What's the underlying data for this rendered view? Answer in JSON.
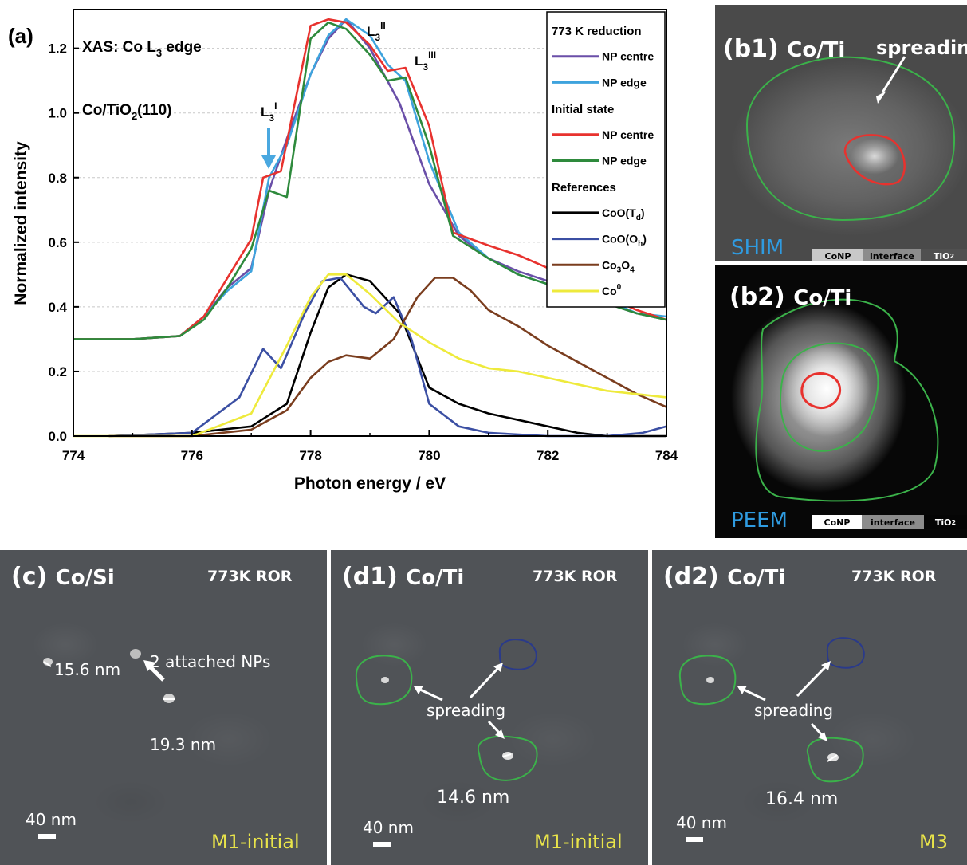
{
  "panel_a": {
    "label": "(a)",
    "note_1": "XAS: Co L",
    "note_1_sub": "3",
    "note_1_tail": " edge",
    "note_2": "Co/TiO",
    "note_2_sub": "2",
    "note_2_tail": "(110)",
    "peak_labels": [
      {
        "base": "L",
        "sub": "3",
        "sup": "I"
      },
      {
        "base": "L",
        "sub": "3",
        "sup": "II"
      },
      {
        "base": "L",
        "sub": "3",
        "sup": "III"
      }
    ],
    "legend": [
      {
        "kind": "header",
        "text": "773 K reduction"
      },
      {
        "kind": "entry",
        "text": "NP centre",
        "color": "#6a4fa8"
      },
      {
        "kind": "entry",
        "text": "NP edge",
        "color": "#3ea3dd"
      },
      {
        "kind": "header",
        "text": "Initial state"
      },
      {
        "kind": "entry",
        "text": "NP centre",
        "color": "#e8322e"
      },
      {
        "kind": "entry",
        "text": "NP edge",
        "color": "#2e8a3c"
      },
      {
        "kind": "header",
        "text": "References"
      },
      {
        "kind": "entry",
        "text": "CoO(T",
        "sub": "d",
        "tail": ")",
        "color": "#000000"
      },
      {
        "kind": "entry",
        "text": "CoO(O",
        "sub": "h",
        "tail": ")",
        "color": "#3b4fa3"
      },
      {
        "kind": "entry",
        "text": "Co",
        "sub": "3",
        "mid": "O",
        "sub2": "4",
        "color": "#7a3d1e"
      },
      {
        "kind": "entry",
        "text": "Co",
        "sup": "0",
        "color": "#eeea3c"
      }
    ]
  },
  "chart_data": {
    "type": "line",
    "xlabel": "Photon energy / eV",
    "ylabel": "Normalized intensity",
    "xlim": [
      774,
      784
    ],
    "ylim": [
      0,
      1.32
    ],
    "xticks": [
      "774",
      "776",
      "778",
      "780",
      "782",
      "784"
    ],
    "yticks": [
      "0.0",
      "0.2",
      "0.4",
      "0.6",
      "0.8",
      "1.0",
      "1.2"
    ],
    "grid": "horizontal dashed",
    "legend_position": "top-right",
    "series": [
      {
        "name": "773 K reduction NP centre",
        "color": "#6a4fa8",
        "x": [
          774,
          775,
          775.8,
          776.2,
          776.6,
          777.0,
          777.3,
          777.6,
          778.0,
          778.3,
          778.6,
          779.0,
          779.5,
          780.0,
          780.5,
          781.0,
          781.5,
          782.0,
          782.5,
          783.0,
          783.5,
          784
        ],
        "y": [
          0.3,
          0.3,
          0.31,
          0.37,
          0.46,
          0.52,
          0.76,
          0.92,
          1.12,
          1.23,
          1.29,
          1.2,
          1.03,
          0.78,
          0.62,
          0.55,
          0.51,
          0.48,
          0.45,
          0.41,
          0.38,
          0.36
        ]
      },
      {
        "name": "773 K reduction NP edge",
        "color": "#3ea3dd",
        "x": [
          774,
          775,
          775.8,
          776.2,
          776.6,
          777.0,
          777.3,
          777.6,
          778.0,
          778.3,
          778.6,
          779.0,
          779.3,
          779.6,
          780.0,
          780.5,
          781.0,
          781.5,
          782.0,
          782.5,
          783.0,
          783.5,
          784
        ],
        "y": [
          0.3,
          0.3,
          0.31,
          0.37,
          0.45,
          0.51,
          0.8,
          0.9,
          1.12,
          1.24,
          1.29,
          1.24,
          1.15,
          1.1,
          0.85,
          0.63,
          0.55,
          0.5,
          0.47,
          0.44,
          0.42,
          0.38,
          0.37
        ]
      },
      {
        "name": "Initial state NP centre",
        "color": "#e8322e",
        "x": [
          774,
          775,
          775.8,
          776.2,
          776.6,
          777.0,
          777.2,
          777.5,
          778.0,
          778.3,
          778.6,
          779.0,
          779.3,
          779.6,
          780.0,
          780.4,
          781.0,
          781.5,
          782.0,
          782.5,
          783.0,
          783.5,
          784
        ],
        "y": [
          0.3,
          0.3,
          0.31,
          0.37,
          0.49,
          0.61,
          0.8,
          0.82,
          1.27,
          1.29,
          1.28,
          1.21,
          1.13,
          1.14,
          0.96,
          0.63,
          0.59,
          0.56,
          0.52,
          0.48,
          0.43,
          0.39,
          0.36
        ]
      },
      {
        "name": "Initial state NP edge",
        "color": "#2e8a3c",
        "x": [
          774,
          775,
          775.8,
          776.2,
          776.6,
          777.0,
          777.3,
          777.6,
          778.0,
          778.3,
          778.6,
          779.0,
          779.3,
          779.6,
          780.0,
          780.4,
          781.0,
          781.5,
          782.0,
          782.5,
          783.0,
          783.5,
          784
        ],
        "y": [
          0.3,
          0.3,
          0.31,
          0.36,
          0.46,
          0.58,
          0.76,
          0.74,
          1.23,
          1.28,
          1.26,
          1.18,
          1.1,
          1.11,
          0.9,
          0.62,
          0.55,
          0.5,
          0.47,
          0.44,
          0.41,
          0.38,
          0.36
        ]
      },
      {
        "name": "CoO(Td)",
        "color": "#000000",
        "x": [
          774.6,
          776,
          777,
          777.6,
          778,
          778.3,
          778.6,
          779.0,
          779.5,
          780,
          780.5,
          781,
          781.5,
          782,
          782.5,
          783,
          783.5,
          784
        ],
        "y": [
          0.0,
          0.01,
          0.03,
          0.1,
          0.32,
          0.46,
          0.5,
          0.48,
          0.38,
          0.15,
          0.1,
          0.07,
          0.05,
          0.03,
          0.01,
          0.0,
          0.0,
          0.0
        ]
      },
      {
        "name": "CoO(Oh)",
        "color": "#3b4fa3",
        "x": [
          774.6,
          776,
          776.8,
          777.2,
          777.5,
          777.9,
          778.2,
          778.5,
          778.9,
          779.1,
          779.4,
          779.7,
          780.0,
          780.5,
          781,
          782,
          783,
          783.6,
          784
        ],
        "y": [
          0.0,
          0.01,
          0.12,
          0.27,
          0.21,
          0.38,
          0.48,
          0.49,
          0.4,
          0.38,
          0.43,
          0.3,
          0.1,
          0.03,
          0.01,
          0.0,
          0.0,
          0.01,
          0.03
        ]
      },
      {
        "name": "Co3O4",
        "color": "#7a3d1e",
        "x": [
          774.6,
          776,
          777,
          777.6,
          778,
          778.3,
          778.6,
          779.0,
          779.4,
          779.8,
          780.1,
          780.4,
          780.7,
          781,
          781.5,
          782,
          782.5,
          783,
          783.5,
          784
        ],
        "y": [
          0.0,
          0.0,
          0.02,
          0.08,
          0.18,
          0.23,
          0.25,
          0.24,
          0.3,
          0.43,
          0.49,
          0.49,
          0.45,
          0.39,
          0.34,
          0.28,
          0.23,
          0.18,
          0.13,
          0.09
        ]
      },
      {
        "name": "Co0",
        "color": "#eeea3c",
        "x": [
          774,
          776,
          777,
          777.6,
          778,
          778.3,
          778.6,
          779.0,
          779.5,
          780,
          780.5,
          781,
          781.5,
          782,
          782.5,
          783,
          783.5,
          784
        ],
        "y": [
          0.0,
          0.0,
          0.07,
          0.28,
          0.43,
          0.5,
          0.5,
          0.44,
          0.35,
          0.29,
          0.24,
          0.21,
          0.2,
          0.18,
          0.16,
          0.14,
          0.13,
          0.12
        ]
      }
    ]
  },
  "panel_b1": {
    "label": "(b1)",
    "sample": "Co/Ti",
    "annotation": "spreading",
    "method": "SHIM",
    "bar": [
      "CoNP",
      "interface",
      "TiO",
      "2"
    ]
  },
  "panel_b2": {
    "label": "(b2)",
    "sample": "Co/Ti",
    "method": "PEEM",
    "bar": [
      "CoNP",
      "interface",
      "TiO",
      "2"
    ]
  },
  "panel_c": {
    "label": "(c)",
    "sample": "Co/Si",
    "condition": "773K ROR",
    "annotations": [
      "15.6 nm",
      "2 attached NPs",
      "19.3 nm"
    ],
    "scale": "40 nm",
    "state": "M1-initial"
  },
  "panel_d1": {
    "label": "(d1)",
    "sample": "Co/Ti",
    "condition": "773K ROR",
    "annotation": "spreading",
    "size": "14.6 nm",
    "scale": "40 nm",
    "state": "M1-initial"
  },
  "panel_d2": {
    "label": "(d2)",
    "sample": "Co/Ti",
    "condition": "773K ROR",
    "annotation": "spreading",
    "size": "16.4 nm",
    "scale": "40 nm",
    "state": "M3"
  }
}
